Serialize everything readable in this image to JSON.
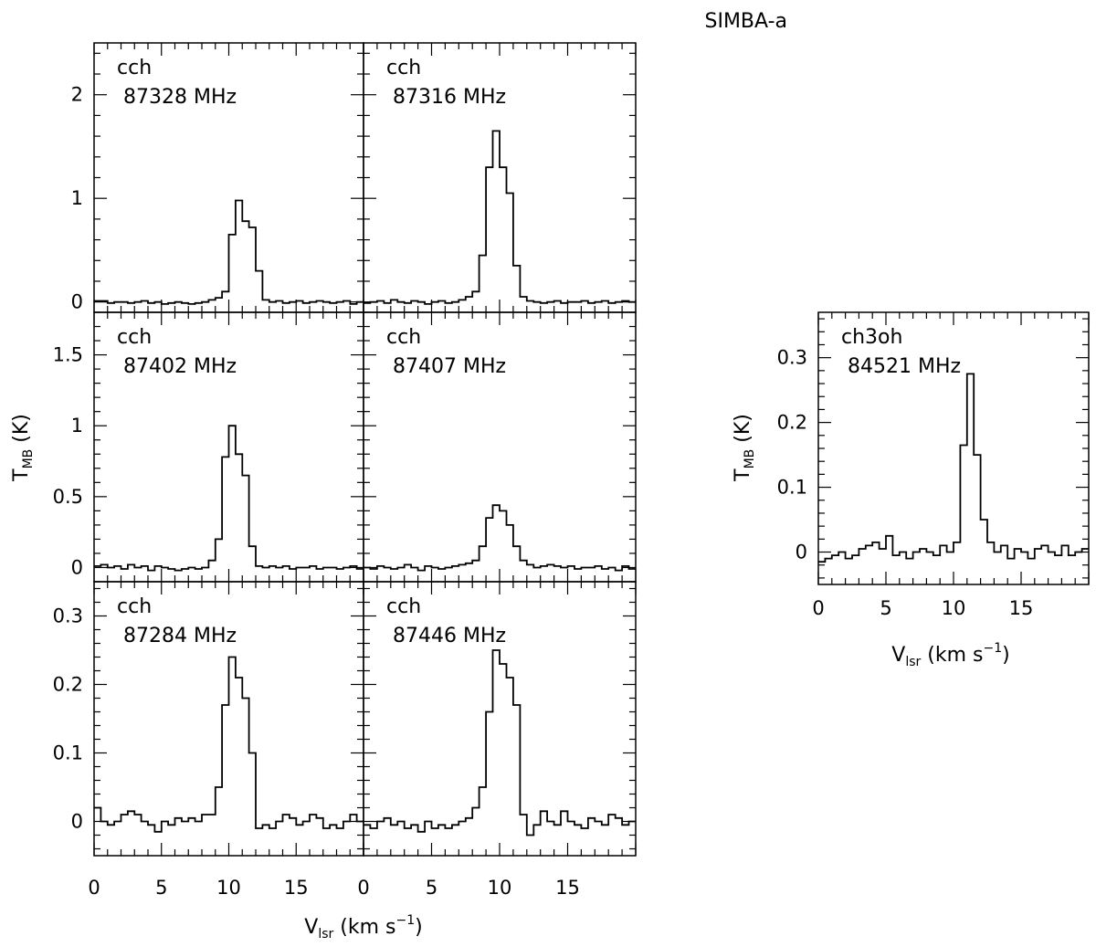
{
  "figure_title": "SIMBA-a",
  "left_xlabel": "V",
  "left_xlabel_sub": "lsr",
  "left_xlabel_unit": " (km s",
  "left_xlabel_exp": "−1",
  "left_xlabel_close": ")",
  "left_ylabel": "T",
  "left_ylabel_sub": "MB",
  "left_ylabel_unit": " (K)",
  "right_xlabel": "V",
  "right_xlabel_sub": "lsr",
  "right_xlabel_unit": " (km s",
  "right_xlabel_exp": "−1",
  "right_xlabel_close": ")",
  "right_ylabel": "T",
  "right_ylabel_sub": "MB",
  "right_ylabel_unit": " (K)",
  "chart_data": [
    {
      "type": "line",
      "step": true,
      "molecule": "cch",
      "frequency": "87328  MHz",
      "xlim": [
        0,
        20
      ],
      "ylim": [
        -0.1,
        2.5
      ],
      "yticks": [
        "0",
        "1",
        "2"
      ],
      "x": [
        0,
        0.5,
        1,
        1.5,
        2,
        2.5,
        3,
        3.5,
        4,
        4.5,
        5,
        5.5,
        6,
        6.5,
        7,
        7.5,
        8,
        8.5,
        9,
        9.5,
        10,
        10.5,
        11,
        11.5,
        12,
        12.5,
        13,
        13.5,
        14,
        14.5,
        15,
        15.5,
        16,
        16.5,
        17,
        17.5,
        18,
        18.5,
        19,
        19.5
      ],
      "y": [
        0.01,
        0.01,
        -0.01,
        0.0,
        0.0,
        -0.01,
        0.0,
        0.01,
        -0.01,
        0.0,
        -0.02,
        -0.01,
        0.0,
        -0.01,
        -0.02,
        -0.01,
        0.0,
        0.02,
        0.04,
        0.1,
        0.65,
        0.98,
        0.78,
        0.72,
        0.3,
        0.02,
        0.0,
        0.01,
        -0.01,
        0.0,
        0.01,
        -0.01,
        0.0,
        0.01,
        0.0,
        -0.01,
        0.0,
        0.01,
        -0.02,
        0.0
      ]
    },
    {
      "type": "line",
      "step": true,
      "molecule": "cch",
      "frequency": "87316  MHz",
      "xlim": [
        0,
        20
      ],
      "ylim": [
        -0.1,
        2.5
      ],
      "yticks": [],
      "x": [
        0,
        0.5,
        1,
        1.5,
        2,
        2.5,
        3,
        3.5,
        4,
        4.5,
        5,
        5.5,
        6,
        6.5,
        7,
        7.5,
        8,
        8.5,
        9,
        9.5,
        10,
        10.5,
        11,
        11.5,
        12,
        12.5,
        13,
        13.5,
        14,
        14.5,
        15,
        15.5,
        16,
        16.5,
        17,
        17.5,
        18,
        18.5,
        19,
        19.5
      ],
      "y": [
        -0.01,
        0.0,
        0.01,
        -0.01,
        0.02,
        0.0,
        -0.01,
        0.01,
        0.0,
        -0.02,
        0.0,
        0.01,
        -0.01,
        0.0,
        0.02,
        0.05,
        0.1,
        0.45,
        1.3,
        1.65,
        1.3,
        1.05,
        0.35,
        0.05,
        0.01,
        0.0,
        -0.01,
        0.0,
        0.01,
        -0.01,
        0.0,
        0.0,
        0.01,
        -0.01,
        0.0,
        0.01,
        -0.01,
        0.0,
        0.01,
        0.0
      ]
    },
    {
      "type": "line",
      "step": true,
      "molecule": "cch",
      "frequency": "87402  MHz",
      "xlim": [
        0,
        20
      ],
      "ylim": [
        -0.1,
        1.8
      ],
      "yticks": [
        "0",
        "0.5",
        "1",
        "1.5"
      ],
      "x": [
        0,
        0.5,
        1,
        1.5,
        2,
        2.5,
        3,
        3.5,
        4,
        4.5,
        5,
        5.5,
        6,
        6.5,
        7,
        7.5,
        8,
        8.5,
        9,
        9.5,
        10,
        10.5,
        11,
        11.5,
        12,
        12.5,
        13,
        13.5,
        14,
        14.5,
        15,
        15.5,
        16,
        16.5,
        17,
        17.5,
        18,
        18.5,
        19,
        19.5
      ],
      "y": [
        0.01,
        0.02,
        0.0,
        0.01,
        -0.01,
        0.02,
        0.0,
        0.01,
        -0.02,
        0.01,
        0.0,
        -0.01,
        -0.02,
        -0.01,
        0.0,
        -0.01,
        0.0,
        0.05,
        0.2,
        0.78,
        1.0,
        0.8,
        0.65,
        0.15,
        0.01,
        0.0,
        0.01,
        0.0,
        0.01,
        -0.01,
        0.0,
        0.0,
        0.01,
        -0.01,
        0.0,
        0.0,
        -0.01,
        0.0,
        0.01,
        -0.01
      ]
    },
    {
      "type": "line",
      "step": true,
      "molecule": "cch",
      "frequency": "87407  MHz",
      "xlim": [
        0,
        20
      ],
      "ylim": [
        -0.1,
        1.8
      ],
      "yticks": [],
      "x": [
        0,
        0.5,
        1,
        1.5,
        2,
        2.5,
        3,
        3.5,
        4,
        4.5,
        5,
        5.5,
        6,
        6.5,
        7,
        7.5,
        8,
        8.5,
        9,
        9.5,
        10,
        10.5,
        11,
        11.5,
        12,
        12.5,
        13,
        13.5,
        14,
        14.5,
        15,
        15.5,
        16,
        16.5,
        17,
        17.5,
        18,
        18.5,
        19,
        19.5
      ],
      "y": [
        0.0,
        -0.01,
        0.01,
        0.0,
        -0.01,
        0.0,
        0.02,
        0.0,
        -0.02,
        0.01,
        0.0,
        -0.01,
        0.0,
        0.01,
        0.02,
        0.03,
        0.05,
        0.15,
        0.35,
        0.44,
        0.4,
        0.3,
        0.15,
        0.05,
        0.02,
        0.0,
        0.01,
        0.02,
        0.01,
        0.0,
        0.01,
        -0.01,
        0.0,
        0.0,
        0.01,
        -0.01,
        0.0,
        -0.02,
        0.01,
        -0.01
      ]
    },
    {
      "type": "line",
      "step": true,
      "molecule": "cch",
      "frequency": "87284  MHz",
      "xlim": [
        0,
        20
      ],
      "ylim": [
        -0.05,
        0.35
      ],
      "yticks": [
        "0",
        "0.1",
        "0.2",
        "0.3"
      ],
      "x": [
        0,
        0.5,
        1,
        1.5,
        2,
        2.5,
        3,
        3.5,
        4,
        4.5,
        5,
        5.5,
        6,
        6.5,
        7,
        7.5,
        8,
        8.5,
        9,
        9.5,
        10,
        10.5,
        11,
        11.5,
        12,
        12.5,
        13,
        13.5,
        14,
        14.5,
        15,
        15.5,
        16,
        16.5,
        17,
        17.5,
        18,
        18.5,
        19,
        19.5
      ],
      "y": [
        0.02,
        0.0,
        -0.005,
        0.0,
        0.01,
        0.015,
        0.01,
        0.0,
        -0.005,
        -0.015,
        0.0,
        -0.005,
        0.005,
        0.0,
        0.005,
        0.0,
        0.01,
        0.01,
        0.05,
        0.17,
        0.24,
        0.21,
        0.18,
        0.1,
        -0.01,
        -0.005,
        -0.01,
        0.0,
        0.01,
        0.005,
        -0.005,
        0.0,
        0.01,
        0.005,
        -0.01,
        -0.005,
        -0.01,
        0.0,
        0.01,
        0.0
      ]
    },
    {
      "type": "line",
      "step": true,
      "molecule": "cch",
      "frequency": "87446  MHz",
      "xlim": [
        0,
        20
      ],
      "ylim": [
        -0.05,
        0.35
      ],
      "yticks": [],
      "x": [
        0,
        0.5,
        1,
        1.5,
        2,
        2.5,
        3,
        3.5,
        4,
        4.5,
        5,
        5.5,
        6,
        6.5,
        7,
        7.5,
        8,
        8.5,
        9,
        9.5,
        10,
        10.5,
        11,
        11.5,
        12,
        12.5,
        13,
        13.5,
        14,
        14.5,
        15,
        15.5,
        16,
        16.5,
        17,
        17.5,
        18,
        18.5,
        19,
        19.5
      ],
      "y": [
        -0.005,
        -0.01,
        0.0,
        0.005,
        -0.005,
        0.0,
        -0.01,
        -0.005,
        -0.015,
        0.0,
        -0.01,
        -0.005,
        -0.01,
        -0.005,
        0.0,
        0.005,
        0.02,
        0.05,
        0.16,
        0.25,
        0.23,
        0.21,
        0.17,
        0.01,
        -0.02,
        -0.005,
        0.015,
        0.0,
        -0.005,
        0.015,
        0.0,
        -0.005,
        -0.01,
        0.005,
        0.0,
        -0.005,
        0.01,
        0.005,
        -0.005,
        0.0
      ]
    },
    {
      "type": "line",
      "step": true,
      "molecule": "ch3oh",
      "frequency": "84521  MHz",
      "xlim": [
        0,
        20
      ],
      "ylim": [
        -0.05,
        0.37
      ],
      "xticks": [
        "0",
        "5",
        "10",
        "15"
      ],
      "yticks": [
        "0",
        "0.1",
        "0.2",
        "0.3"
      ],
      "x": [
        0,
        0.5,
        1,
        1.5,
        2,
        2.5,
        3,
        3.5,
        4,
        4.5,
        5,
        5.5,
        6,
        6.5,
        7,
        7.5,
        8,
        8.5,
        9,
        9.5,
        10,
        10.5,
        11,
        11.5,
        12,
        12.5,
        13,
        13.5,
        14,
        14.5,
        15,
        15.5,
        16,
        16.5,
        17,
        17.5,
        18,
        18.5,
        19,
        19.5
      ],
      "y": [
        -0.015,
        -0.01,
        -0.005,
        0.0,
        -0.01,
        -0.005,
        0.005,
        0.01,
        0.015,
        0.005,
        0.025,
        -0.005,
        0.0,
        -0.01,
        0.0,
        0.005,
        0.0,
        -0.005,
        0.01,
        0.0,
        0.015,
        0.165,
        0.275,
        0.15,
        0.05,
        0.015,
        0.0,
        0.01,
        -0.01,
        0.005,
        0.0,
        -0.01,
        0.005,
        0.01,
        0.0,
        -0.005,
        0.01,
        -0.005,
        0.0,
        0.005
      ]
    }
  ],
  "left_xticks": [
    "0",
    "5",
    "10",
    "15",
    "0",
    "5",
    "10",
    "15"
  ]
}
